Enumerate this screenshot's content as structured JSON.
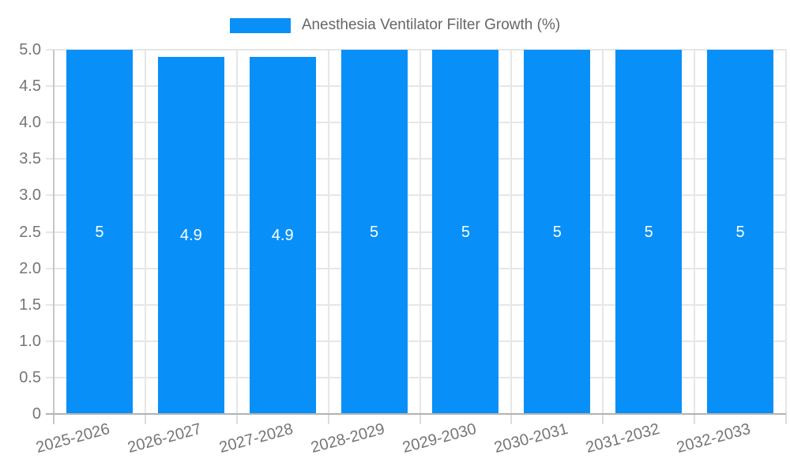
{
  "chart_data": {
    "type": "bar",
    "title": "Anesthesia Ventilator Filter Growth (%)",
    "categories": [
      "2025-2026",
      "2026-2027",
      "2027-2028",
      "2028-2029",
      "2029-2030",
      "2030-2031",
      "2031-2032",
      "2032-2033"
    ],
    "values": [
      5,
      4.9,
      4.9,
      5,
      5,
      5,
      5,
      5
    ],
    "bar_labels": [
      "5",
      "4.9",
      "4.9",
      "5",
      "5",
      "5",
      "5",
      "5"
    ],
    "xlabel": "",
    "ylabel": "",
    "ylim": [
      0,
      5
    ],
    "y_tick_step": 0.5,
    "y_tick_labels": [
      "0",
      "0.5",
      "1.0",
      "1.5",
      "2.0",
      "2.5",
      "3.0",
      "3.5",
      "4.0",
      "4.5",
      "5.0"
    ],
    "grid": true,
    "legend_position": "top"
  },
  "colors": {
    "bar": "#0890f8",
    "grid": "#e6e6e6",
    "x_axis_line": "#b3b3b3",
    "y_axis_line": "#c6c6c6",
    "tick": "#dcdcdc",
    "tick_text": "#757575",
    "legend_text": "#666666",
    "bar_label": "#ffffff",
    "background": "#ffffff"
  }
}
